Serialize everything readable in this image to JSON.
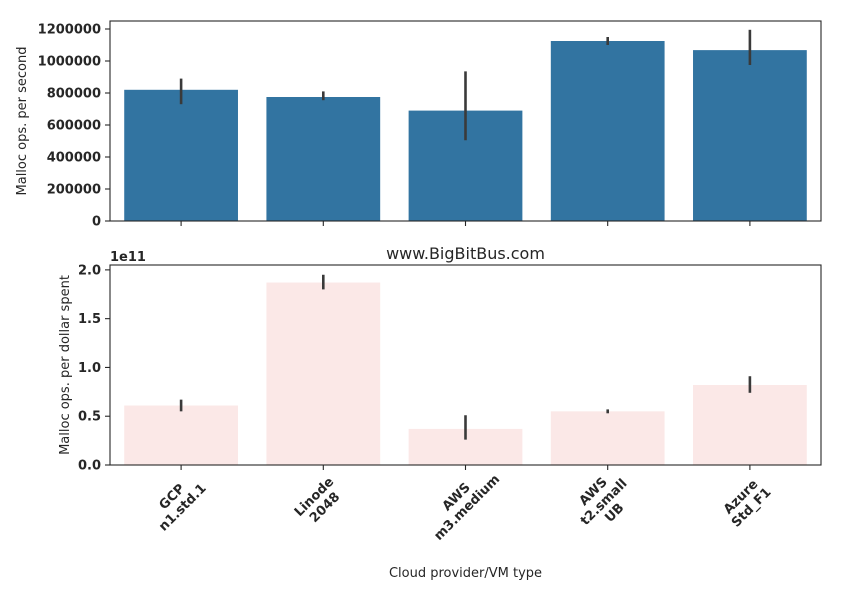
{
  "chart_data": [
    {
      "type": "bar",
      "title": "",
      "xlabel": "",
      "ylabel": "Malloc ops. per second",
      "categories": [
        "GCP\nn1.std.1",
        "Linode\n2048",
        "AWS\nm3.medium",
        "AWS\nt2.small\nUB",
        "Azure\nStd_F1"
      ],
      "values": [
        820000,
        775000,
        690000,
        1125000,
        1068000
      ],
      "error_low": [
        730000,
        755000,
        505000,
        1100000,
        975000
      ],
      "error_high": [
        890000,
        810000,
        935000,
        1150000,
        1195000
      ],
      "ylim": [
        0,
        1250000
      ],
      "yticks": [
        0,
        200000,
        400000,
        600000,
        800000,
        1000000,
        1200000
      ],
      "ytick_labels": [
        "0",
        "200000",
        "400000",
        "600000",
        "800000",
        "1000000",
        "1200000"
      ],
      "bar_color": "#3274a1",
      "grid": false,
      "show_xtick_labels": false
    },
    {
      "type": "bar",
      "title": "www.BigBitBus.com",
      "xlabel": "Cloud provider/VM type",
      "ylabel": "Malloc ops. per dollar spent",
      "offset_text": "1e11",
      "categories": [
        "GCP\nn1.std.1",
        "Linode\n2048",
        "AWS\nm3.medium",
        "AWS\nt2.small\nUB",
        "Azure\nStd_F1"
      ],
      "values": [
        0.61,
        1.87,
        0.37,
        0.55,
        0.82
      ],
      "error_low": [
        0.55,
        1.8,
        0.26,
        0.53,
        0.74
      ],
      "error_high": [
        0.67,
        1.95,
        0.51,
        0.57,
        0.91
      ],
      "ylim": [
        0,
        2.05
      ],
      "yticks": [
        0,
        0.5,
        1.0,
        1.5,
        2.0
      ],
      "ytick_labels": [
        "0.0",
        "0.5",
        "1.0",
        "1.5",
        "2.0"
      ],
      "bar_color": "#fbe8e7",
      "grid": false,
      "show_xtick_labels": true
    }
  ]
}
